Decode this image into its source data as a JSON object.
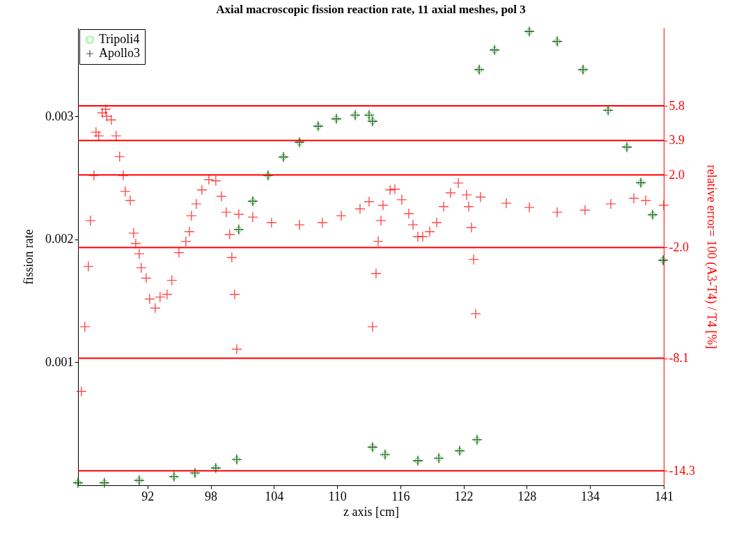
{
  "chart_data": {
    "type": "scatter",
    "title": "Axial macroscopic fission reaction rate, 11 axial meshes, pol 3",
    "xlabel": "z axis [cm]",
    "ylabel": "fission rate",
    "y2label": "relative error= 100 (A3-T4) / T4 [%]",
    "xlim": [
      85.4,
      141
    ],
    "xticks": [
      92,
      98,
      104,
      110,
      116,
      122,
      128,
      134,
      141
    ],
    "ylim": [
      0,
      0.00372
    ],
    "yticks": [
      0.001,
      0.002,
      0.003
    ],
    "y2lim": [
      -15.1,
      10.1
    ],
    "y2ticks": [
      5.8,
      3.9,
      {
        "value": 2,
        "label": "2.0"
      },
      {
        "value": -2,
        "label": "-2.0"
      },
      -8.1,
      -14.3
    ],
    "legend": "top left",
    "ref_lines": [
      {
        "axis": "y2",
        "value": 5.8,
        "color": "#ff0000"
      },
      {
        "axis": "y2",
        "value": 3.9,
        "color": "#ff0000"
      },
      {
        "axis": "y2",
        "value": 2,
        "color": "#ff0000"
      },
      {
        "axis": "y2",
        "value": -2,
        "color": "#ff0000"
      },
      {
        "axis": "y2",
        "value": -8.1,
        "color": "#ff0000"
      },
      {
        "axis": "y2",
        "value": -14.3,
        "color": "#ff0000"
      }
    ],
    "series": [
      {
        "name": "Tripoli4",
        "color": "#00ff00",
        "marker": "circle",
        "x": [
          85.4,
          87.9,
          91.21,
          94.51,
          96.5,
          98.48,
          100.47,
          100.66,
          101.99,
          103.44,
          104.9,
          106.42,
          108.2,
          109.92,
          111.71,
          113.03,
          113.36,
          113.36,
          114.55,
          117.66,
          119.65,
          121.63,
          123.28,
          123.48,
          124.94,
          128.24,
          130.89,
          133.34,
          135.72,
          137.5,
          138.83,
          139.95,
          140.94
        ],
        "values": [
          2e-05,
          2e-05,
          4e-05,
          7e-05,
          0.0001,
          0.00014,
          0.00021,
          0.00208,
          0.00231,
          0.00252,
          0.00267,
          0.00279,
          0.00292,
          0.00298,
          0.00301,
          0.00301,
          0.00296,
          0.00031,
          0.00025,
          0.0002,
          0.00022,
          0.00028,
          0.00037,
          0.00338,
          0.00354,
          0.00369,
          0.00361,
          0.00338,
          0.00305,
          0.00275,
          0.00246,
          0.0022,
          0.00183
        ]
      },
      {
        "name": "Apollo3",
        "color": "#000000",
        "marker": "cross",
        "x": [
          85.4,
          87.9,
          91.21,
          94.51,
          96.5,
          98.48,
          100.47,
          100.66,
          101.99,
          103.44,
          104.9,
          106.42,
          108.2,
          109.92,
          111.71,
          113.03,
          113.36,
          113.36,
          114.55,
          117.66,
          119.65,
          121.63,
          123.28,
          123.48,
          124.94,
          128.24,
          130.89,
          133.34,
          135.72,
          137.5,
          138.83,
          139.95,
          140.94
        ],
        "values": [
          2e-05,
          2e-05,
          4e-05,
          7e-05,
          0.0001,
          0.00014,
          0.00021,
          0.00208,
          0.00231,
          0.00252,
          0.00267,
          0.00279,
          0.00292,
          0.00298,
          0.00301,
          0.00301,
          0.00296,
          0.00031,
          0.00025,
          0.0002,
          0.00022,
          0.00028,
          0.00037,
          0.00338,
          0.00354,
          0.00369,
          0.00361,
          0.00338,
          0.00305,
          0.00275,
          0.00246,
          0.0022,
          0.00183
        ]
      },
      {
        "color": "#ff0000",
        "marker": "cross",
        "axis": "y2",
        "x": [
          85.72,
          86.05,
          86.38,
          86.58,
          86.91,
          87.11,
          87.37,
          87.7,
          88.03,
          88.1,
          88.56,
          89.02,
          89.35,
          89.69,
          89.88,
          90.35,
          90.68,
          90.88,
          91.21,
          91.4,
          91.87,
          92.2,
          92.73,
          93.19,
          93.85,
          94.31,
          94.98,
          95.64,
          95.97,
          96.17,
          96.63,
          97.16,
          97.82,
          98.48,
          99.01,
          99.47,
          99.8,
          100,
          100.27,
          100.47,
          100.66,
          101.99,
          103.77,
          106.42,
          108.6,
          110.39,
          112.17,
          113.03,
          113.36,
          113.69,
          113.89,
          114.16,
          114.35,
          115.02,
          115.48,
          116.14,
          116.8,
          117.2,
          117.66,
          118.12,
          118.79,
          119.45,
          120.11,
          120.77,
          121.5,
          122.29,
          122.49,
          122.75,
          122.95,
          123.15,
          123.61,
          126.06,
          128.24,
          130.89,
          133.53,
          135.98,
          138.16,
          139.29,
          141
        ],
        "values": [
          -9.93,
          -6.37,
          -3.04,
          -0.52,
          1.97,
          4.35,
          4.15,
          5.42,
          5.61,
          5.23,
          5.03,
          4.15,
          3.01,
          1.97,
          1.09,
          0.59,
          -1.21,
          -1.78,
          -2.35,
          -3.12,
          -3.69,
          -4.84,
          -5.34,
          -4.73,
          -4.58,
          -3.81,
          -2.28,
          -1.67,
          -1.13,
          -0.25,
          0.4,
          1.17,
          1.74,
          1.67,
          0.82,
          -0.06,
          -1.28,
          -2.55,
          -4.58,
          -7.6,
          -0.17,
          -0.33,
          -0.63,
          -0.75,
          -0.63,
          -0.25,
          0.13,
          0.52,
          -6.37,
          -3.43,
          -1.66,
          -0.52,
          0.33,
          1.17,
          1.21,
          0.63,
          -0.13,
          -0.75,
          -1.4,
          -1.4,
          -1.13,
          -0.63,
          0.25,
          1.01,
          1.55,
          0.9,
          0.25,
          -0.9,
          -2.66,
          -5.65,
          0.78,
          0.44,
          0.21,
          -0.06,
          0.06,
          0.4,
          0.71,
          0.59,
          0.33
        ]
      }
    ]
  }
}
